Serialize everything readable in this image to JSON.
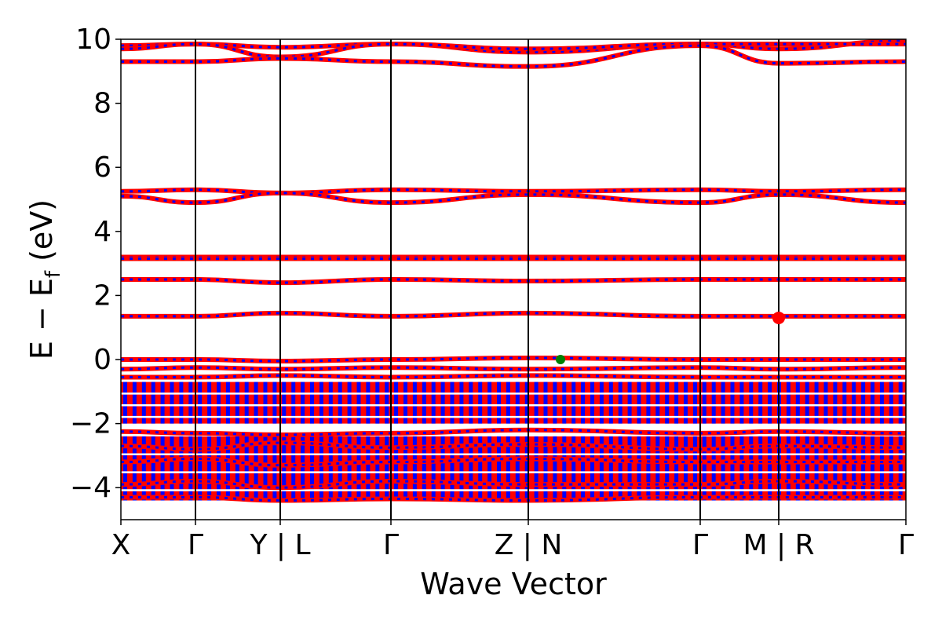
{
  "chart_data": {
    "type": "line",
    "title": "",
    "xlabel": "Wave Vector",
    "ylabel": "E − E_f (eV)",
    "ylabel_parts": {
      "main": "E − E",
      "subscript": "f",
      "unit": " (eV)"
    },
    "ylim": [
      -5,
      10
    ],
    "yticks": [
      "−4",
      "−2",
      "0",
      "2",
      "4",
      "6",
      "8",
      "10"
    ],
    "ytick_values": [
      -4,
      -2,
      0,
      2,
      4,
      6,
      8,
      10
    ],
    "k_path": {
      "positions": [
        0,
        0.095,
        0.203,
        0.344,
        0.519,
        0.738,
        0.838,
        1.0
      ],
      "labels": [
        "X",
        "Γ",
        "Y | L",
        "Γ",
        "Z | N",
        "Γ",
        "M | R",
        "Γ"
      ]
    },
    "colors": {
      "primary": "#ff0000",
      "secondary": "#0000ff",
      "vbm": "#008000",
      "cbm": "#ff0000",
      "axis": "#000000"
    },
    "grid": false,
    "legend": "none",
    "series": [
      {
        "color": "#ff0000",
        "bands": [
          {
            "x": [
              0,
              0.095,
              0.203,
              0.344,
              0.519,
              0.738,
              0.838,
              1.0
            ],
            "y": [
              9.8,
              9.85,
              9.75,
              9.85,
              9.6,
              9.85,
              9.7,
              9.95
            ]
          },
          {
            "x": [
              0,
              0.095,
              0.203,
              0.344,
              0.519,
              0.738,
              0.838,
              1.0
            ],
            "y": [
              9.7,
              9.85,
              9.45,
              9.85,
              9.7,
              9.85,
              9.85,
              9.85
            ]
          },
          {
            "x": [
              0,
              0.095,
              0.203,
              0.344,
              0.519,
              0.738,
              0.838,
              1.0
            ],
            "y": [
              9.3,
              9.3,
              9.4,
              9.3,
              9.15,
              9.8,
              9.25,
              9.3
            ]
          },
          {
            "x": [
              0,
              0.095,
              0.203,
              0.344,
              0.519,
              0.738,
              0.838,
              1.0
            ],
            "y": [
              5.25,
              5.3,
              5.2,
              5.3,
              5.25,
              5.3,
              5.25,
              5.3
            ]
          },
          {
            "x": [
              0,
              0.095,
              0.203,
              0.344,
              0.519,
              0.738,
              0.838,
              1.0
            ],
            "y": [
              5.1,
              4.9,
              5.2,
              4.9,
              5.15,
              4.9,
              5.15,
              4.9
            ]
          },
          {
            "x": [
              0,
              0.095,
              0.203,
              0.344,
              0.519,
              0.738,
              0.838,
              1.0
            ],
            "y": [
              3.2,
              3.2,
              3.2,
              3.2,
              3.2,
              3.2,
              3.2,
              3.2
            ]
          },
          {
            "x": [
              0,
              0.095,
              0.203,
              0.344,
              0.519,
              0.738,
              0.838,
              1.0
            ],
            "y": [
              3.15,
              3.15,
              3.15,
              3.15,
              3.15,
              3.15,
              3.15,
              3.15
            ]
          },
          {
            "x": [
              0,
              0.095,
              0.203,
              0.344,
              0.519,
              0.738,
              0.838,
              1.0
            ],
            "y": [
              2.5,
              2.5,
              2.4,
              2.5,
              2.45,
              2.5,
              2.5,
              2.5
            ]
          },
          {
            "x": [
              0,
              0.095,
              0.203,
              0.344,
              0.519,
              0.738,
              0.838,
              1.0
            ],
            "y": [
              1.35,
              1.35,
              1.45,
              1.35,
              1.45,
              1.35,
              1.35,
              1.35
            ]
          },
          {
            "x": [
              0,
              0.095,
              0.203,
              0.344,
              0.519,
              0.738,
              0.838,
              1.0
            ],
            "y": [
              0.0,
              0.0,
              -0.05,
              0.0,
              0.05,
              0.0,
              0.0,
              0.0
            ]
          },
          {
            "x": [
              0,
              0.095,
              0.203,
              0.344,
              0.519,
              0.738,
              0.838,
              1.0
            ],
            "y": [
              -0.3,
              -0.25,
              -0.3,
              -0.25,
              -0.3,
              -0.25,
              -0.3,
              -0.25
            ]
          },
          {
            "x": [
              0,
              0.095,
              0.203,
              0.344,
              0.519,
              0.738,
              0.838,
              1.0
            ],
            "y": [
              -0.55,
              -0.55,
              -0.5,
              -0.55,
              -0.5,
              -0.55,
              -0.55,
              -0.55
            ]
          },
          {
            "x": [
              0,
              0.095,
              0.203,
              0.344,
              0.519,
              0.738,
              0.838,
              1.0
            ],
            "y": [
              -2.25,
              -2.3,
              -2.35,
              -2.3,
              -2.2,
              -2.3,
              -2.25,
              -2.3
            ]
          },
          {
            "x": [
              0,
              0.095,
              0.203,
              0.344,
              0.519,
              0.738,
              0.838,
              1.0
            ],
            "y": [
              -2.7,
              -2.8,
              -2.6,
              -2.75,
              -2.65,
              -2.8,
              -2.7,
              -2.75
            ]
          },
          {
            "x": [
              0,
              0.095,
              0.203,
              0.344,
              0.519,
              0.738,
              0.838,
              1.0
            ],
            "y": [
              -3.2,
              -3.1,
              -3.3,
              -3.2,
              -3.1,
              -3.2,
              -3.2,
              -3.2
            ]
          },
          {
            "x": [
              0,
              0.095,
              0.203,
              0.344,
              0.519,
              0.738,
              0.838,
              1.0
            ],
            "y": [
              -3.9,
              -3.8,
              -4.0,
              -3.8,
              -3.9,
              -3.9,
              -3.8,
              -3.9
            ]
          },
          {
            "x": [
              0,
              0.095,
              0.203,
              0.344,
              0.519,
              0.738,
              0.838,
              1.0
            ],
            "y": [
              -4.3,
              -4.3,
              -4.4,
              -4.35,
              -4.4,
              -4.3,
              -4.3,
              -4.3
            ]
          }
        ]
      },
      {
        "color": "#0000ff",
        "bands": []
      }
    ],
    "filled_regions": [
      {
        "ymin": -2.0,
        "ymax": -0.7,
        "color": "#ff0000"
      },
      {
        "ymin": -4.4,
        "ymax": -2.4,
        "color": "#ff0000"
      }
    ],
    "markers": [
      {
        "kind": "vbm",
        "x": 0.56,
        "y": 0.0,
        "color": "#008000"
      },
      {
        "kind": "cbm",
        "x": 0.838,
        "y": 1.3,
        "color": "#ff0000"
      }
    ]
  }
}
